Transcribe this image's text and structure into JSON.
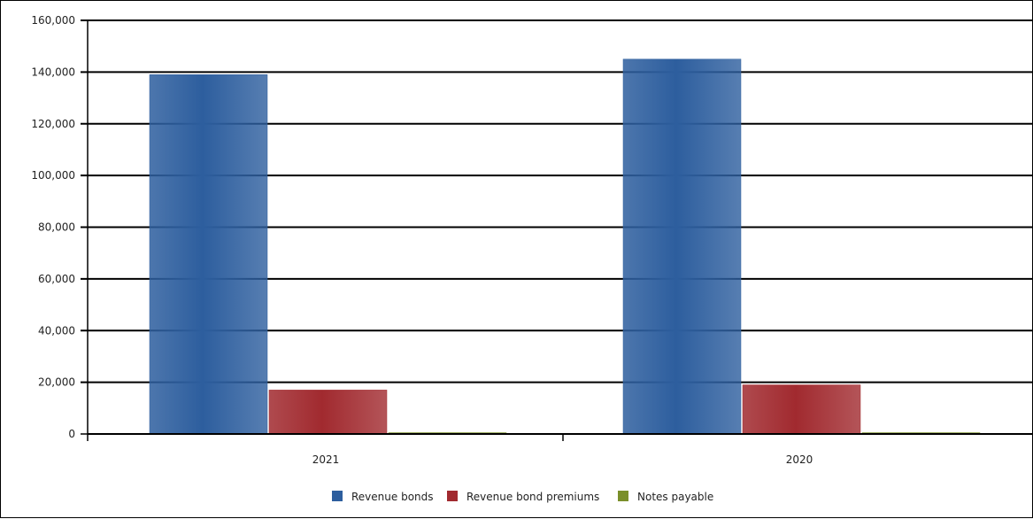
{
  "chart_data": {
    "type": "bar",
    "categories": [
      "2021",
      "2020"
    ],
    "series": [
      {
        "name": "Revenue bonds",
        "values": [
          139000,
          145000
        ],
        "color": "#2d5e9e"
      },
      {
        "name": "Revenue bond premiums",
        "values": [
          17000,
          19000
        ],
        "color": "#a12a2f"
      },
      {
        "name": "Notes payable",
        "values": [
          500,
          500
        ],
        "color": "#7a8f2a"
      }
    ],
    "ylim": [
      0,
      160000
    ],
    "yticks": [
      0,
      20000,
      40000,
      60000,
      80000,
      100000,
      120000,
      140000,
      160000
    ],
    "ytick_labels": [
      "0",
      "20,000",
      "40,000",
      "60,000",
      "80,000",
      "100,000",
      "120,000",
      "140,000",
      "160,000"
    ],
    "grid": true,
    "legend_position": "bottom-center"
  }
}
